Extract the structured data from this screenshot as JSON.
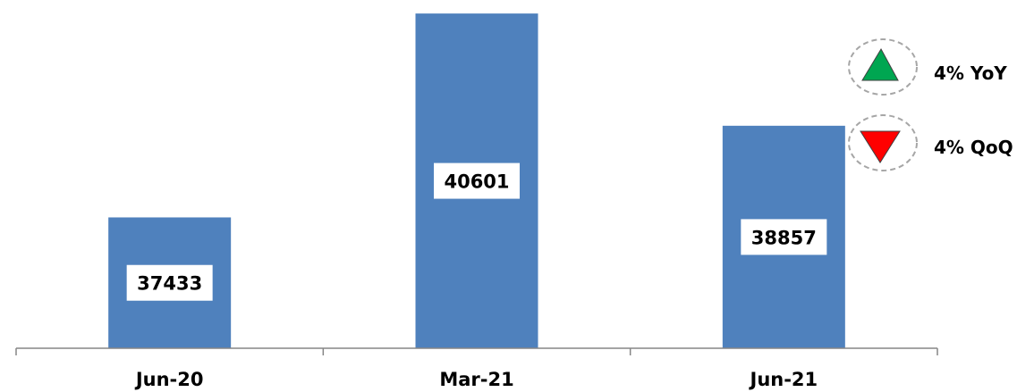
{
  "chart_data": {
    "type": "bar",
    "title": "",
    "xlabel": "",
    "ylabel": "",
    "categories": [
      "Jun-20",
      "Mar-21",
      "Jun-21"
    ],
    "values": [
      37433,
      40601,
      38857
    ],
    "ylim": [
      35400,
      40700
    ],
    "grid": false,
    "legend": "none",
    "bar_color": "#4F81BD"
  },
  "callouts": [
    {
      "label": "4% YoY",
      "direction": "up",
      "icon": "triangle-up-icon",
      "color": "#00A651"
    },
    {
      "label": "4% QoQ",
      "direction": "down",
      "icon": "triangle-down-icon",
      "color": "#FF0000"
    }
  ]
}
